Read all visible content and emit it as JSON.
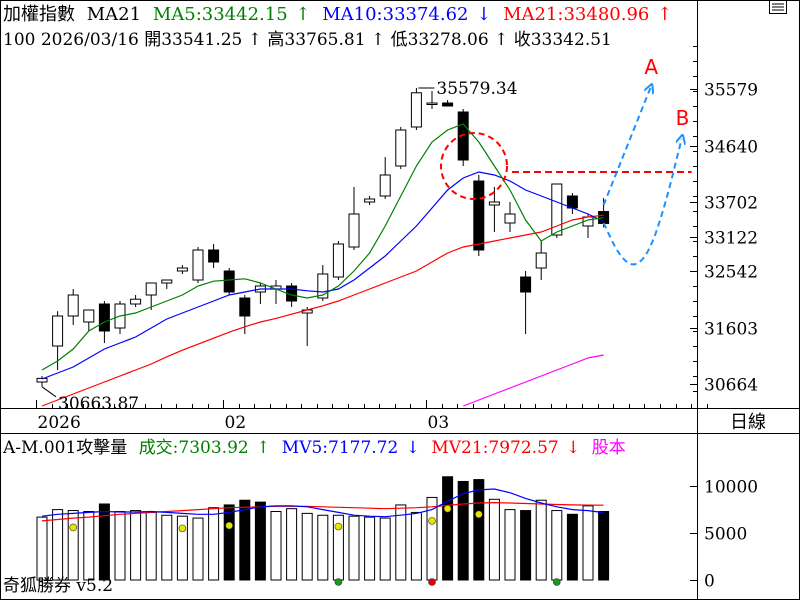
{
  "header": {
    "name": "加權指數",
    "ma_label": "MA21",
    "ma5": "MA5:33442.15",
    "ma5_arrow": "↑",
    "ma10": "MA10:33374.62",
    "ma10_arrow": "↓",
    "ma21": "MA21:33480.96",
    "ma21_arrow": "↑",
    "info_line": "100 2026/03/16 開33541.25 ↑ 高33765.81 ↑ 低33278.06 ↑ 收33342.51"
  },
  "period_label": "日線",
  "corner_icon": "menu-lines-icon",
  "volume_header": {
    "name": "A-M.001攻擊量",
    "vol": "成交:7303.92",
    "vol_arrow": "↑",
    "mv5": "MV5:7177.72",
    "mv5_arrow": "↓",
    "mv21": "MV21:7972.57",
    "mv21_arrow": "↓",
    "extra": "股本"
  },
  "footer": "奇狐勝券 v5.2",
  "annotations": {
    "high": "35579.34",
    "low": "30663.87",
    "label_a": "A",
    "label_b": "B"
  },
  "colors": {
    "up": "#000000",
    "ma5": "#008000",
    "ma10": "#0000ff",
    "ma21": "#ff0000",
    "magenta": "#ff00ff",
    "forecast": "#1e90ff",
    "circle": "#ff0000"
  },
  "chart_data": [
    {
      "type": "candlestick",
      "x_tick_labels": [
        "2026",
        "02",
        "03"
      ],
      "y_tick_labels": [
        "35579",
        "34640",
        "33702",
        "33122",
        "32542",
        "31603",
        "30664"
      ],
      "ylim": [
        30300,
        36300
      ],
      "candles": [
        {
          "o": 30700,
          "h": 30800,
          "l": 30620,
          "c": 30760,
          "up": true
        },
        {
          "o": 31300,
          "h": 31880,
          "l": 30900,
          "c": 31800,
          "up": true
        },
        {
          "o": 31800,
          "h": 32250,
          "l": 31650,
          "c": 32150,
          "up": true
        },
        {
          "o": 31700,
          "h": 31900,
          "l": 31550,
          "c": 31900,
          "up": true
        },
        {
          "o": 32000,
          "h": 32050,
          "l": 31350,
          "c": 31550,
          "up": false
        },
        {
          "o": 31600,
          "h": 32050,
          "l": 31500,
          "c": 32000,
          "up": true
        },
        {
          "o": 32000,
          "h": 32150,
          "l": 31950,
          "c": 32080,
          "up": true
        },
        {
          "o": 32150,
          "h": 32350,
          "l": 31900,
          "c": 32350,
          "up": true
        },
        {
          "o": 32350,
          "h": 32400,
          "l": 32250,
          "c": 32400,
          "up": true
        },
        {
          "o": 32550,
          "h": 32650,
          "l": 32500,
          "c": 32600,
          "up": true
        },
        {
          "o": 32400,
          "h": 32950,
          "l": 32350,
          "c": 32900,
          "up": true
        },
        {
          "o": 32900,
          "h": 33000,
          "l": 32600,
          "c": 32700,
          "up": false
        },
        {
          "o": 32550,
          "h": 32600,
          "l": 32150,
          "c": 32200,
          "up": false
        },
        {
          "o": 32100,
          "h": 32150,
          "l": 31500,
          "c": 31800,
          "up": false
        },
        {
          "o": 32200,
          "h": 32350,
          "l": 32000,
          "c": 32300,
          "up": true
        },
        {
          "o": 32250,
          "h": 32400,
          "l": 32000,
          "c": 32300,
          "up": true
        },
        {
          "o": 32300,
          "h": 32350,
          "l": 31950,
          "c": 32050,
          "up": false
        },
        {
          "o": 31850,
          "h": 31950,
          "l": 31300,
          "c": 31900,
          "up": true
        },
        {
          "o": 32100,
          "h": 32650,
          "l": 32050,
          "c": 32500,
          "up": true
        },
        {
          "o": 32450,
          "h": 33050,
          "l": 32400,
          "c": 33000,
          "up": true
        },
        {
          "o": 32950,
          "h": 33950,
          "l": 32900,
          "c": 33500,
          "up": true
        },
        {
          "o": 33700,
          "h": 33800,
          "l": 33650,
          "c": 33750,
          "up": true
        },
        {
          "o": 33800,
          "h": 34450,
          "l": 33750,
          "c": 34150,
          "up": true
        },
        {
          "o": 34300,
          "h": 34950,
          "l": 34250,
          "c": 34900,
          "up": true
        },
        {
          "o": 34950,
          "h": 35600,
          "l": 34900,
          "c": 35520,
          "up": true
        },
        {
          "o": 35350,
          "h": 35550,
          "l": 35250,
          "c": 35350,
          "up": true
        },
        {
          "o": 35350,
          "h": 35400,
          "l": 35300,
          "c": 35300,
          "up": false
        },
        {
          "o": 35200,
          "h": 35250,
          "l": 34300,
          "c": 34400,
          "up": false
        },
        {
          "o": 34050,
          "h": 34150,
          "l": 32800,
          "c": 32900,
          "up": false
        },
        {
          "o": 33700,
          "h": 33950,
          "l": 33200,
          "c": 33650,
          "up": true
        },
        {
          "o": 33350,
          "h": 33700,
          "l": 33200,
          "c": 33500,
          "up": true
        },
        {
          "o": 32450,
          "h": 32550,
          "l": 31500,
          "c": 32200,
          "up": false
        },
        {
          "o": 32600,
          "h": 33050,
          "l": 32400,
          "c": 32850,
          "up": true
        },
        {
          "o": 33150,
          "h": 34000,
          "l": 33100,
          "c": 34000,
          "up": true
        },
        {
          "o": 33800,
          "h": 33850,
          "l": 33500,
          "c": 33600,
          "up": false
        },
        {
          "o": 33300,
          "h": 33500,
          "l": 33100,
          "c": 33450,
          "up": true
        },
        {
          "o": 33541.25,
          "h": 33765.81,
          "l": 33278.06,
          "c": 33342.51,
          "up": false
        }
      ],
      "ma5": [
        30900,
        31050,
        31250,
        31550,
        31700,
        31800,
        31850,
        31950,
        32050,
        32150,
        32300,
        32380,
        32400,
        32420,
        32350,
        32250,
        32150,
        32100,
        32150,
        32300,
        32550,
        32850,
        33300,
        33800,
        34300,
        34700,
        34900,
        35000,
        34700,
        34300,
        33900,
        33400,
        33050,
        33200,
        33300,
        33400,
        33440
      ],
      "ma10": [
        30750,
        30850,
        30950,
        31100,
        31250,
        31350,
        31450,
        31600,
        31750,
        31850,
        31950,
        32050,
        32150,
        32200,
        32250,
        32250,
        32250,
        32220,
        32200,
        32250,
        32400,
        32600,
        32800,
        33050,
        33300,
        33600,
        33900,
        34100,
        34200,
        34150,
        34050,
        33900,
        33800,
        33700,
        33600,
        33500,
        33375
      ],
      "ma21": [
        30300,
        30400,
        30500,
        30600,
        30700,
        30800,
        30900,
        31000,
        31120,
        31230,
        31330,
        31430,
        31530,
        31620,
        31700,
        31760,
        31830,
        31900,
        31970,
        32050,
        32150,
        32250,
        32350,
        32450,
        32550,
        32700,
        32850,
        32950,
        33000,
        33050,
        33100,
        33150,
        33200,
        33300,
        33400,
        33450,
        33480
      ],
      "ma_long_tail": [
        null,
        null,
        null,
        null,
        null,
        null,
        null,
        null,
        null,
        null,
        null,
        null,
        null,
        null,
        null,
        null,
        null,
        null,
        null,
        null,
        null,
        null,
        null,
        null,
        null,
        null,
        null,
        30300,
        30400,
        30500,
        30600,
        30700,
        30800,
        30900,
        31000,
        31100,
        31150
      ],
      "forecast_ref_level": 34200,
      "forecast_a": [
        [
          36,
          33650
        ],
        [
          37,
          34300
        ],
        [
          38,
          34950
        ],
        [
          39,
          35600
        ]
      ],
      "forecast_b": [
        [
          36,
          33350
        ],
        [
          37,
          32800
        ],
        [
          38,
          32600
        ],
        [
          39,
          32900
        ],
        [
          40,
          33700
        ],
        [
          41,
          34750
        ]
      ]
    },
    {
      "type": "bar",
      "y_tick_labels": [
        "10000",
        "5000",
        "0"
      ],
      "ylim": [
        0,
        13000
      ],
      "volume": [
        6700,
        7500,
        7400,
        7300,
        8100,
        7300,
        7400,
        7200,
        6900,
        6800,
        6600,
        7700,
        8000,
        8500,
        8300,
        7300,
        7600,
        7100,
        6900,
        6900,
        6800,
        6700,
        6600,
        8000,
        7200,
        8800,
        11000,
        10500,
        10700,
        8600,
        7500,
        7400,
        8500,
        7400,
        7000,
        7900,
        7300
      ],
      "volume_up": [
        true,
        true,
        true,
        true,
        false,
        true,
        true,
        true,
        true,
        true,
        true,
        true,
        false,
        false,
        false,
        true,
        true,
        true,
        true,
        true,
        true,
        true,
        true,
        true,
        true,
        true,
        false,
        false,
        false,
        true,
        true,
        false,
        true,
        true,
        false,
        true,
        false
      ],
      "mv5": [
        6800,
        7000,
        7100,
        7200,
        7300,
        7250,
        7250,
        7300,
        7200,
        7100,
        7000,
        7000,
        7200,
        7500,
        7800,
        7900,
        7900,
        7800,
        7500,
        7200,
        6900,
        6800,
        6750,
        6900,
        7100,
        7500,
        8400,
        9200,
        9600,
        9700,
        9300,
        8700,
        8200,
        7800,
        7500,
        7400,
        7180
      ],
      "mv21": [
        6300,
        6450,
        6600,
        6700,
        6850,
        7000,
        7100,
        7200,
        7300,
        7400,
        7500,
        7600,
        7700,
        7750,
        7800,
        7850,
        7850,
        7850,
        7800,
        7750,
        7700,
        7650,
        7600,
        7650,
        7700,
        7800,
        7950,
        8100,
        8200,
        8250,
        8200,
        8150,
        8100,
        8050,
        8000,
        7980,
        7970
      ],
      "markers": [
        {
          "i": 2,
          "v": 5600,
          "color": "#e6e600"
        },
        {
          "i": 9,
          "v": 5500,
          "color": "#e6e600"
        },
        {
          "i": 12,
          "v": 5800,
          "color": "#e6e600"
        },
        {
          "i": 19,
          "v": 5700,
          "color": "#e6e600"
        },
        {
          "i": 25,
          "v": 6300,
          "color": "#e6e600"
        },
        {
          "i": 26,
          "v": 7600,
          "color": "#e6e600"
        },
        {
          "i": 28,
          "v": 7000,
          "color": "#e6e600"
        },
        {
          "i": 19,
          "v": -300,
          "color": "#1a9a1a"
        },
        {
          "i": 25,
          "v": -300,
          "color": "#e60000"
        },
        {
          "i": 33,
          "v": -300,
          "color": "#1a9a1a"
        }
      ]
    }
  ]
}
